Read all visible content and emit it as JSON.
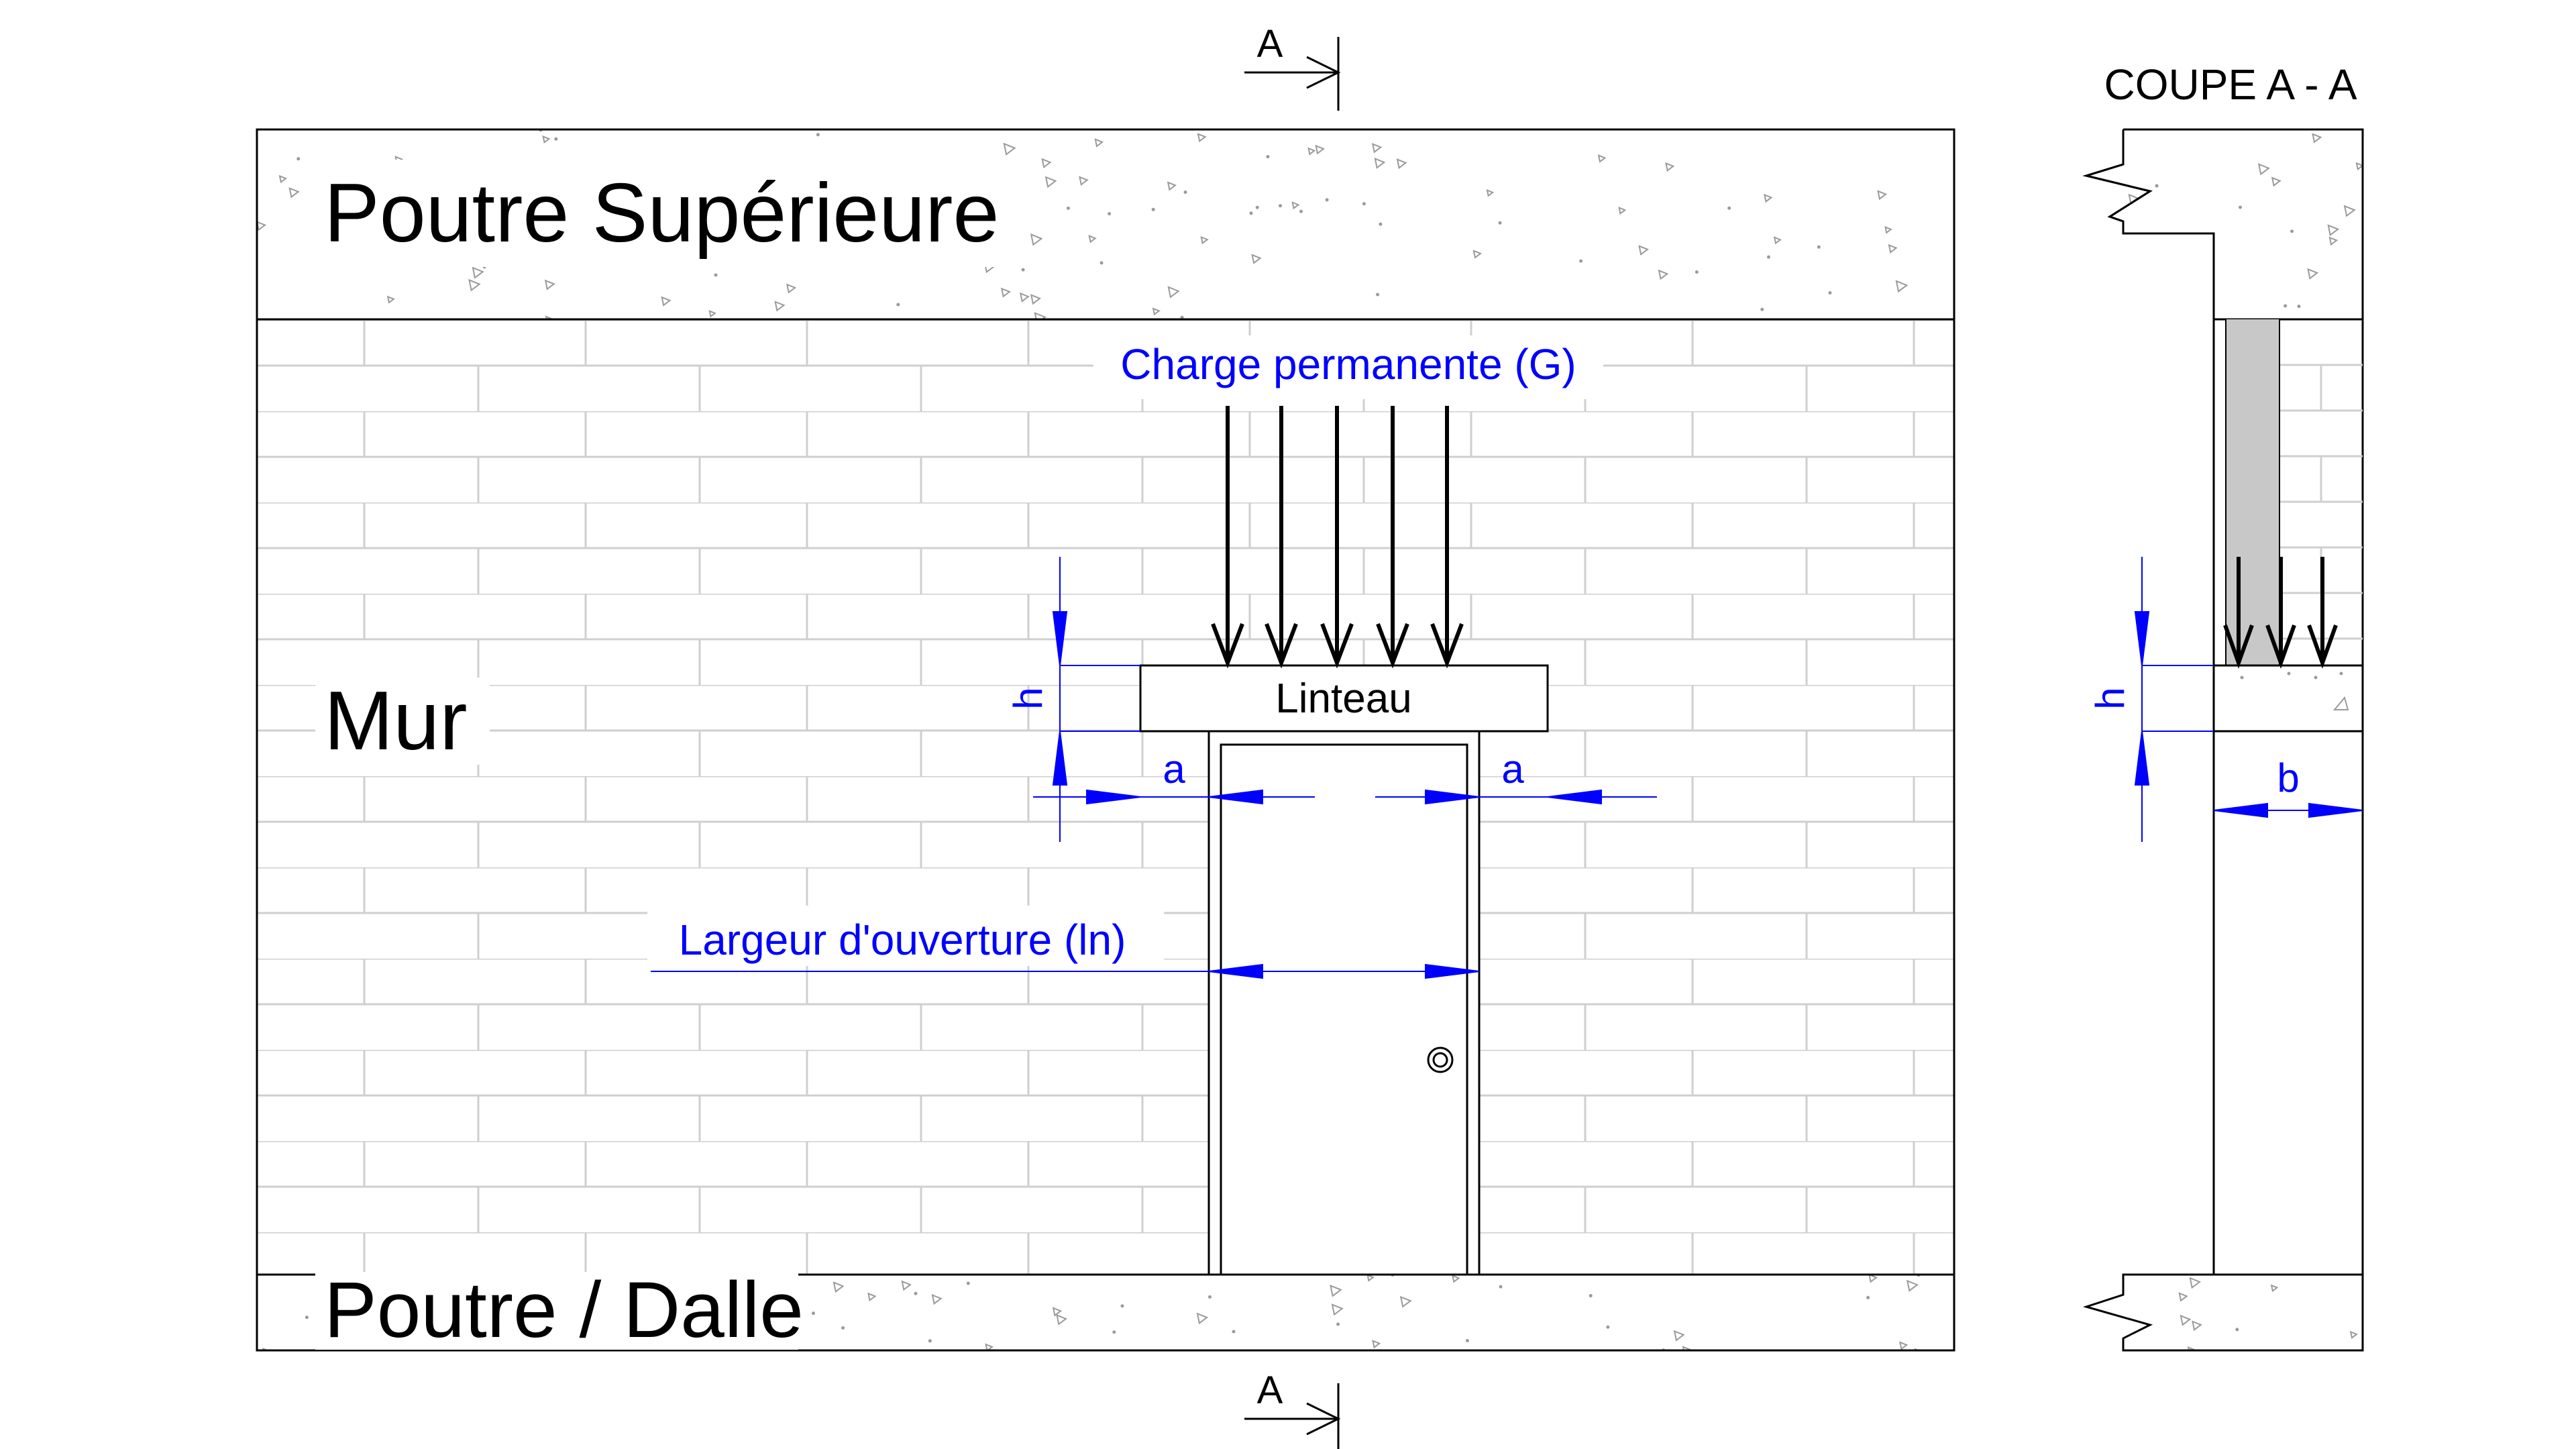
{
  "section_marker_top": "A",
  "section_marker_bottom": "A",
  "section_title": "COUPE A - A",
  "labels": {
    "top_beam": "Poutre Supérieure",
    "wall": "Mur",
    "bottom_beam": "Poutre / Dalle",
    "lintel": "Linteau",
    "load": "Charge permanente (G)",
    "opening_width": "Largeur d'ouverture (ln)",
    "bearing_left": "a",
    "bearing_right": "a",
    "height_elevation": "h",
    "height_section": "h",
    "width_section": "b"
  },
  "colors": {
    "dimension": "#0000ff",
    "line": "#000000",
    "brick_line": "#c8c8c8",
    "concrete_speckle": "#9a9a9a",
    "section_fill": "#c8c8c8"
  },
  "icons": [
    "load-arrow-icon",
    "section-cut-arrow-icon",
    "door-knob-icon",
    "break-line-icon"
  ]
}
